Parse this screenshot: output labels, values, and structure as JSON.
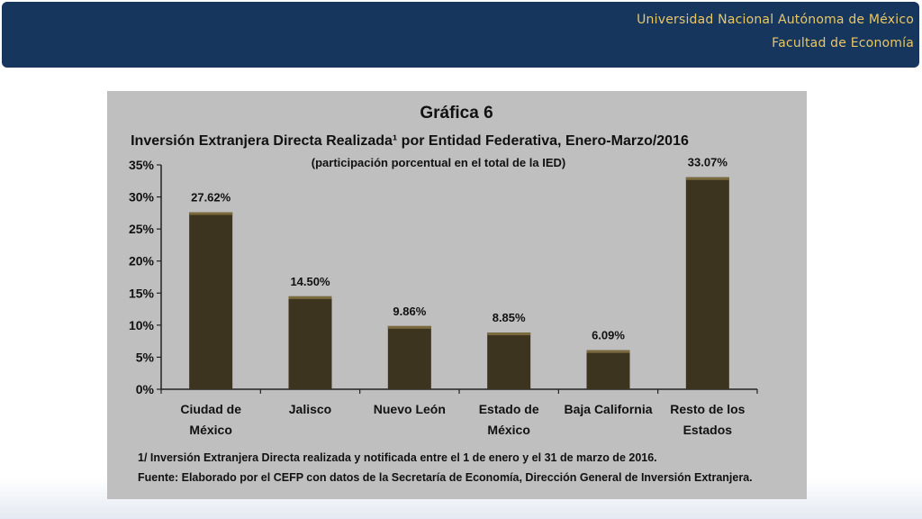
{
  "header": {
    "university": "Universidad Nacional Autónoma de México",
    "faculty": "Facultad de Economía"
  },
  "chart_data": {
    "type": "bar",
    "figure_label": "Gráfica 6",
    "title": "Inversión Extranjera Directa Realizada¹ por Entidad Federativa, Enero-Marzo/2016",
    "subtitle": "(participación porcentual en el total de la IED)",
    "categories": [
      [
        "Ciudad de",
        "México"
      ],
      [
        "Jalisco"
      ],
      [
        "Nuevo León"
      ],
      [
        "Estado de",
        "México"
      ],
      [
        "Baja California"
      ],
      [
        "Resto de los",
        "Estados"
      ]
    ],
    "values": [
      27.62,
      14.5,
      9.86,
      8.85,
      6.09,
      33.07
    ],
    "value_labels": [
      "27.62%",
      "14.50%",
      "9.86%",
      "8.85%",
      "6.09%",
      "33.07%"
    ],
    "yticks": [
      "0%",
      "5%",
      "10%",
      "15%",
      "20%",
      "25%",
      "30%",
      "35%"
    ],
    "ylim": [
      0,
      35
    ],
    "bar_color": "#3d3420",
    "background_color": "#bfbfbf",
    "grid": false,
    "footnote": "1/ Inversión Extranjera Directa realizada y notificada entre el 1 de enero y el 31 de marzo de 2016.",
    "source": "Fuente: Elaborado por el CEFP con datos de la Secretaría de Economía, Dirección General de Inversión Extranjera."
  }
}
